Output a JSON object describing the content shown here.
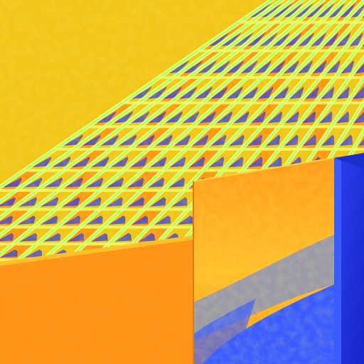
{
  "scene": {
    "description_free": true,
    "colors": {
      "ceiling_base": "#f2c619",
      "ceiling_hot": "#ff9a12",
      "ceiling_shadow": "#2a3fe6",
      "grid_line": "#e8ff6a",
      "grid_glow": "#7dff7a",
      "wall_left": "#ff9416",
      "wall_left_dark": "#e8781a",
      "column_front": "#ff9c1a",
      "column_front_light": "#ffc02a",
      "column_side": "#2b3ff0",
      "column_side_dark": "#1626c8",
      "column_gray": "#9a9aa8",
      "column_blue_band": "#3a5cff"
    }
  }
}
